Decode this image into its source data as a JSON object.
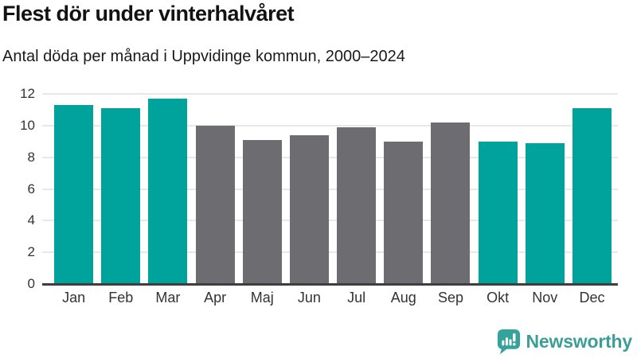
{
  "header": {
    "title": "Flest dör under vinterhalvåret",
    "subtitle": "Antal döda per månad i Uppvidinge kommun, 2000–2024"
  },
  "chart_data": {
    "type": "bar",
    "title": "Flest dör under vinterhalvåret",
    "subtitle": "Antal döda per månad i Uppvidinge kommun, 2000–2024",
    "categories": [
      "Jan",
      "Feb",
      "Mar",
      "Apr",
      "Maj",
      "Jun",
      "Jul",
      "Aug",
      "Sep",
      "Okt",
      "Nov",
      "Dec"
    ],
    "values": [
      11.3,
      11.1,
      11.7,
      10.0,
      9.1,
      9.4,
      9.9,
      9.0,
      10.2,
      9.0,
      8.9,
      11.1
    ],
    "groups": [
      "winter",
      "winter",
      "winter",
      "summer",
      "summer",
      "summer",
      "summer",
      "summer",
      "summer",
      "winter",
      "winter",
      "winter"
    ],
    "palette": {
      "winter": "#00a29c",
      "summer": "#6c6c71"
    },
    "xlabel": "",
    "ylabel": "",
    "ylim": [
      0,
      12
    ],
    "yticks": [
      0,
      2,
      4,
      6,
      8,
      10,
      12
    ],
    "grid": true,
    "legend": "none"
  },
  "footer": {
    "brand": "Newsworthy",
    "icon": "newsworthy-chart-bubble-icon",
    "icon_color": "#35a39b",
    "text_color": "#3d9e98"
  }
}
